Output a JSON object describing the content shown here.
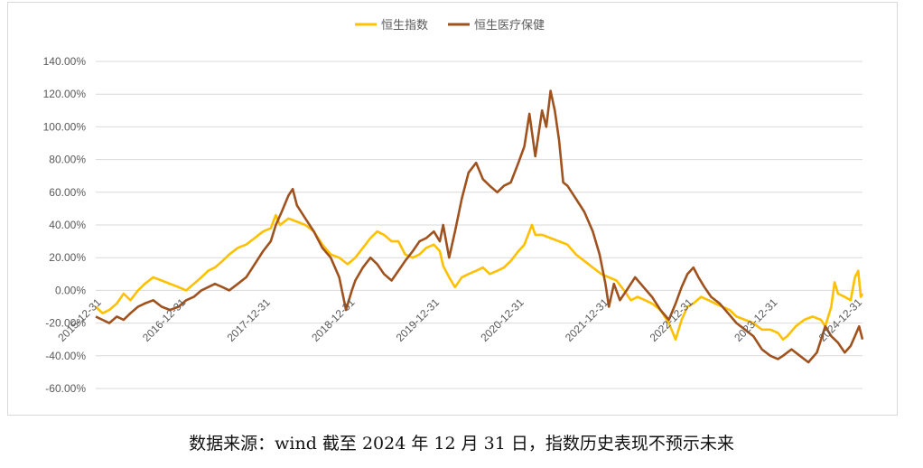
{
  "footnote": "数据来源：wind   截至 2024 年 12 月 31 日，指数历史表现不预示未来",
  "chart_data": {
    "type": "line",
    "title": "",
    "xlabel": "",
    "ylabel": "",
    "ylim": [
      -60,
      140
    ],
    "y_ticks": [
      140,
      120,
      100,
      80,
      60,
      40,
      20,
      0,
      -20,
      -40,
      -60
    ],
    "y_tick_labels": [
      "140.00%",
      "120.00%",
      "100.00%",
      "80.00%",
      "60.00%",
      "40.00%",
      "20.00%",
      "0.00%",
      "-20.00%",
      "-40.00%",
      "-60.00%"
    ],
    "grid": true,
    "legend_position": "top-center",
    "x_start": 2015.92,
    "x_end": 2024.99,
    "x_ticks": [
      2015.99,
      2016.99,
      2017.99,
      2018.99,
      2019.99,
      2020.99,
      2021.99,
      2022.99,
      2023.99,
      2024.99
    ],
    "x_tick_labels": [
      "2015-12-31",
      "2016-12-31",
      "2017-12-31",
      "2018-12-31",
      "2019-12-31",
      "2020-12-31",
      "2021-12-31",
      "2022-12-31",
      "2023-12-31",
      "2024-12-31"
    ],
    "series": [
      {
        "name": "恒生指数",
        "color": "#FFC000",
        "points": [
          [
            2015.92,
            -10
          ],
          [
            2016.0,
            -14
          ],
          [
            2016.08,
            -12
          ],
          [
            2016.17,
            -8
          ],
          [
            2016.25,
            -2
          ],
          [
            2016.33,
            -6
          ],
          [
            2016.42,
            0
          ],
          [
            2016.5,
            4
          ],
          [
            2016.6,
            8
          ],
          [
            2016.7,
            6
          ],
          [
            2016.8,
            4
          ],
          [
            2016.9,
            2
          ],
          [
            2016.99,
            0
          ],
          [
            2017.08,
            4
          ],
          [
            2017.17,
            8
          ],
          [
            2017.25,
            12
          ],
          [
            2017.33,
            14
          ],
          [
            2017.42,
            18
          ],
          [
            2017.5,
            22
          ],
          [
            2017.6,
            26
          ],
          [
            2017.7,
            28
          ],
          [
            2017.8,
            32
          ],
          [
            2017.9,
            36
          ],
          [
            2017.99,
            38
          ],
          [
            2018.05,
            46
          ],
          [
            2018.1,
            40
          ],
          [
            2018.2,
            44
          ],
          [
            2018.3,
            42
          ],
          [
            2018.4,
            40
          ],
          [
            2018.5,
            36
          ],
          [
            2018.6,
            28
          ],
          [
            2018.7,
            22
          ],
          [
            2018.8,
            20
          ],
          [
            2018.9,
            16
          ],
          [
            2018.99,
            20
          ],
          [
            2019.08,
            26
          ],
          [
            2019.17,
            32
          ],
          [
            2019.25,
            36
          ],
          [
            2019.33,
            34
          ],
          [
            2019.42,
            30
          ],
          [
            2019.5,
            30
          ],
          [
            2019.58,
            22
          ],
          [
            2019.67,
            20
          ],
          [
            2019.75,
            22
          ],
          [
            2019.83,
            26
          ],
          [
            2019.92,
            28
          ],
          [
            2019.99,
            24
          ],
          [
            2020.03,
            15
          ],
          [
            2020.1,
            8
          ],
          [
            2020.17,
            2
          ],
          [
            2020.25,
            8
          ],
          [
            2020.33,
            10
          ],
          [
            2020.42,
            12
          ],
          [
            2020.5,
            14
          ],
          [
            2020.58,
            10
          ],
          [
            2020.67,
            12
          ],
          [
            2020.75,
            14
          ],
          [
            2020.83,
            18
          ],
          [
            2020.92,
            24
          ],
          [
            2020.99,
            28
          ],
          [
            2021.08,
            40
          ],
          [
            2021.12,
            34
          ],
          [
            2021.2,
            34
          ],
          [
            2021.3,
            32
          ],
          [
            2021.4,
            30
          ],
          [
            2021.5,
            28
          ],
          [
            2021.6,
            22
          ],
          [
            2021.7,
            18
          ],
          [
            2021.8,
            14
          ],
          [
            2021.9,
            10
          ],
          [
            2021.99,
            8
          ],
          [
            2022.08,
            6
          ],
          [
            2022.17,
            0
          ],
          [
            2022.25,
            -6
          ],
          [
            2022.33,
            -4
          ],
          [
            2022.42,
            -6
          ],
          [
            2022.5,
            -8
          ],
          [
            2022.6,
            -12
          ],
          [
            2022.7,
            -20
          ],
          [
            2022.78,
            -30
          ],
          [
            2022.85,
            -18
          ],
          [
            2022.92,
            -10
          ],
          [
            2022.99,
            -8
          ],
          [
            2023.08,
            -4
          ],
          [
            2023.17,
            -6
          ],
          [
            2023.25,
            -8
          ],
          [
            2023.33,
            -10
          ],
          [
            2023.42,
            -12
          ],
          [
            2023.5,
            -16
          ],
          [
            2023.6,
            -18
          ],
          [
            2023.7,
            -20
          ],
          [
            2023.8,
            -24
          ],
          [
            2023.9,
            -24
          ],
          [
            2023.99,
            -26
          ],
          [
            2024.05,
            -30
          ],
          [
            2024.1,
            -28
          ],
          [
            2024.2,
            -22
          ],
          [
            2024.3,
            -18
          ],
          [
            2024.4,
            -16
          ],
          [
            2024.5,
            -18
          ],
          [
            2024.55,
            -22
          ],
          [
            2024.62,
            -10
          ],
          [
            2024.66,
            5
          ],
          [
            2024.7,
            -2
          ],
          [
            2024.78,
            -4
          ],
          [
            2024.85,
            -6
          ],
          [
            2024.9,
            8
          ],
          [
            2024.94,
            12
          ],
          [
            2024.97,
            -4
          ],
          [
            2024.99,
            -2
          ]
        ]
      },
      {
        "name": "恒生医疗保健",
        "color": "#A0521E",
        "points": [
          [
            2015.92,
            -16
          ],
          [
            2016.0,
            -18
          ],
          [
            2016.08,
            -20
          ],
          [
            2016.17,
            -16
          ],
          [
            2016.25,
            -18
          ],
          [
            2016.33,
            -14
          ],
          [
            2016.42,
            -10
          ],
          [
            2016.5,
            -8
          ],
          [
            2016.6,
            -6
          ],
          [
            2016.7,
            -10
          ],
          [
            2016.8,
            -12
          ],
          [
            2016.9,
            -10
          ],
          [
            2016.99,
            -6
          ],
          [
            2017.08,
            -4
          ],
          [
            2017.17,
            0
          ],
          [
            2017.25,
            2
          ],
          [
            2017.33,
            4
          ],
          [
            2017.42,
            2
          ],
          [
            2017.5,
            0
          ],
          [
            2017.6,
            4
          ],
          [
            2017.7,
            8
          ],
          [
            2017.8,
            16
          ],
          [
            2017.9,
            24
          ],
          [
            2017.99,
            30
          ],
          [
            2018.05,
            40
          ],
          [
            2018.12,
            48
          ],
          [
            2018.2,
            58
          ],
          [
            2018.25,
            62
          ],
          [
            2018.3,
            52
          ],
          [
            2018.4,
            44
          ],
          [
            2018.5,
            36
          ],
          [
            2018.6,
            26
          ],
          [
            2018.7,
            20
          ],
          [
            2018.8,
            8
          ],
          [
            2018.88,
            -12
          ],
          [
            2018.95,
            0
          ],
          [
            2018.99,
            6
          ],
          [
            2019.08,
            14
          ],
          [
            2019.17,
            20
          ],
          [
            2019.25,
            16
          ],
          [
            2019.33,
            10
          ],
          [
            2019.42,
            6
          ],
          [
            2019.5,
            12
          ],
          [
            2019.58,
            18
          ],
          [
            2019.67,
            24
          ],
          [
            2019.75,
            30
          ],
          [
            2019.83,
            32
          ],
          [
            2019.92,
            36
          ],
          [
            2019.99,
            30
          ],
          [
            2020.03,
            40
          ],
          [
            2020.1,
            20
          ],
          [
            2020.17,
            36
          ],
          [
            2020.25,
            56
          ],
          [
            2020.33,
            72
          ],
          [
            2020.42,
            78
          ],
          [
            2020.5,
            68
          ],
          [
            2020.58,
            64
          ],
          [
            2020.67,
            60
          ],
          [
            2020.75,
            64
          ],
          [
            2020.83,
            66
          ],
          [
            2020.92,
            78
          ],
          [
            2020.99,
            88
          ],
          [
            2021.05,
            108
          ],
          [
            2021.12,
            82
          ],
          [
            2021.2,
            110
          ],
          [
            2021.25,
            100
          ],
          [
            2021.3,
            122
          ],
          [
            2021.35,
            110
          ],
          [
            2021.4,
            92
          ],
          [
            2021.45,
            66
          ],
          [
            2021.5,
            64
          ],
          [
            2021.6,
            56
          ],
          [
            2021.7,
            48
          ],
          [
            2021.8,
            36
          ],
          [
            2021.88,
            22
          ],
          [
            2021.95,
            4
          ],
          [
            2021.99,
            -10
          ],
          [
            2022.05,
            4
          ],
          [
            2022.12,
            -6
          ],
          [
            2022.2,
            0
          ],
          [
            2022.3,
            8
          ],
          [
            2022.4,
            2
          ],
          [
            2022.5,
            -4
          ],
          [
            2022.6,
            -12
          ],
          [
            2022.7,
            -18
          ],
          [
            2022.78,
            -8
          ],
          [
            2022.85,
            2
          ],
          [
            2022.92,
            10
          ],
          [
            2022.99,
            14
          ],
          [
            2023.05,
            8
          ],
          [
            2023.12,
            2
          ],
          [
            2023.2,
            -4
          ],
          [
            2023.3,
            -8
          ],
          [
            2023.4,
            -14
          ],
          [
            2023.5,
            -20
          ],
          [
            2023.6,
            -24
          ],
          [
            2023.7,
            -28
          ],
          [
            2023.8,
            -36
          ],
          [
            2023.9,
            -40
          ],
          [
            2023.99,
            -42
          ],
          [
            2024.05,
            -40
          ],
          [
            2024.15,
            -36
          ],
          [
            2024.25,
            -40
          ],
          [
            2024.35,
            -44
          ],
          [
            2024.45,
            -38
          ],
          [
            2024.55,
            -22
          ],
          [
            2024.62,
            -28
          ],
          [
            2024.7,
            -32
          ],
          [
            2024.78,
            -38
          ],
          [
            2024.85,
            -34
          ],
          [
            2024.9,
            -28
          ],
          [
            2024.95,
            -22
          ],
          [
            2024.99,
            -30
          ]
        ]
      }
    ]
  }
}
